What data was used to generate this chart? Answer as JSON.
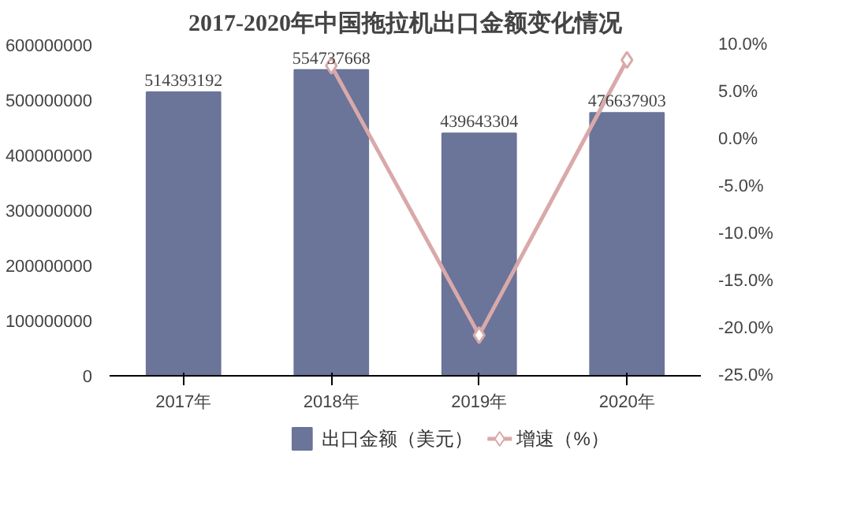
{
  "chart_data": {
    "type": "bar",
    "title": "2017-2020年中国拖拉机出口金额变化情况",
    "categories": [
      "2017年",
      "2018年",
      "2019年",
      "2020年"
    ],
    "ylim": [
      0,
      600000000
    ],
    "yticks": [
      0,
      100000000,
      200000000,
      300000000,
      400000000,
      500000000,
      600000000
    ],
    "y2lim": [
      -25,
      10
    ],
    "y2ticks": [
      {
        "value": -25,
        "label": "-25.0%"
      },
      {
        "value": -20,
        "label": "-20.0%"
      },
      {
        "value": -15,
        "label": "-15.0%"
      },
      {
        "value": -10,
        "label": "-10.0%"
      },
      {
        "value": -5,
        "label": "-5.0%"
      },
      {
        "value": 0,
        "label": "0.0%"
      },
      {
        "value": 5,
        "label": "5.0%"
      },
      {
        "value": 10,
        "label": "10.0%"
      }
    ],
    "legend": "bottom",
    "marker": "diamond",
    "series": [
      {
        "name": "出口金额（美元）",
        "color": "#6b7499",
        "values": [
          514393192,
          554737668,
          439643304,
          476637903
        ],
        "value_labels": [
          "514393192",
          "554737668",
          "439643304",
          "476637903"
        ]
      },
      {
        "name": "增速（%）",
        "type": "line",
        "axis": "y2",
        "color": "#d9a9aa",
        "values": [
          null,
          7.8,
          -20.7,
          8.4
        ]
      }
    ]
  }
}
